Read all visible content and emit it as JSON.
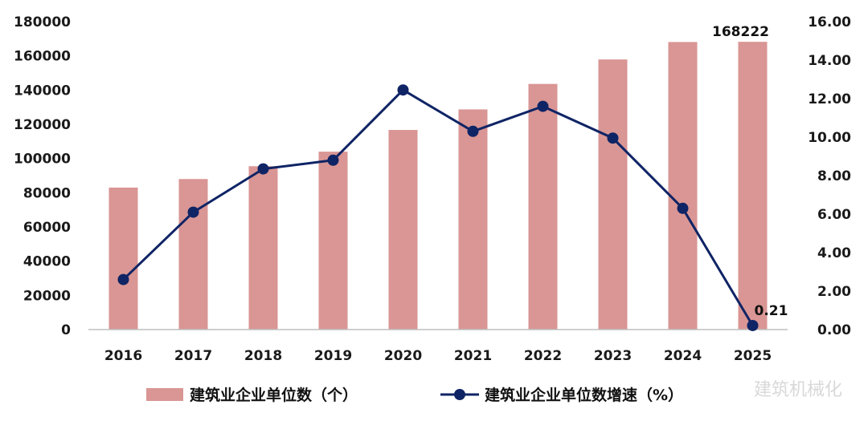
{
  "chart_data": {
    "type": "bar",
    "categories": [
      "2016",
      "2017",
      "2018",
      "2019",
      "2020",
      "2021",
      "2022",
      "2023",
      "2024",
      "2025"
    ],
    "series": [
      {
        "name": "建筑业企业单位数（个）",
        "type": "bar",
        "axis": "left",
        "color": "#d99694",
        "values": [
          83000,
          88000,
          95500,
          104000,
          116700,
          128700,
          143600,
          157900,
          168100,
          168222
        ]
      },
      {
        "name": "建筑业企业单位数增速（%）",
        "type": "line",
        "axis": "right",
        "color": "#0f2465",
        "values": [
          2.6,
          6.1,
          8.35,
          8.8,
          12.45,
          10.3,
          11.6,
          9.95,
          6.3,
          0.21
        ]
      }
    ],
    "left_axis": {
      "min": 0,
      "max": 180000,
      "step": 20000
    },
    "right_axis": {
      "min": 0,
      "max": 16,
      "step": 2,
      "decimals": 2
    },
    "data_labels": [
      {
        "series": 0,
        "index": 9,
        "text": "168222"
      },
      {
        "series": 1,
        "index": 9,
        "text": "0.21"
      }
    ],
    "legend": {
      "position": "bottom"
    },
    "grid": false,
    "watermark": "建筑机械化"
  }
}
